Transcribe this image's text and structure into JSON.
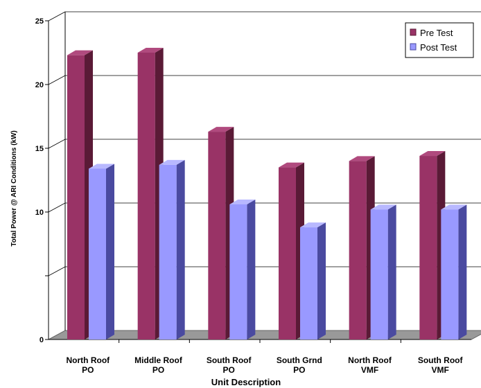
{
  "chart_data": {
    "type": "bar",
    "xlabel": "Unit Description",
    "ylabel": "Total  Power  @  ARI  Conditions   (kW)",
    "ylim": [
      0,
      25
    ],
    "yticks": [
      "0",
      "",
      "10",
      "15",
      "20",
      "25"
    ],
    "grid": true,
    "legend_position": "top-right",
    "categories": [
      [
        "North Roof",
        "PO"
      ],
      [
        "Middle Roof",
        "PO"
      ],
      [
        "South Roof",
        "PO"
      ],
      [
        "South Grnd",
        "PO"
      ],
      [
        "North Roof",
        "VMF"
      ],
      [
        "South Roof",
        "VMF"
      ]
    ],
    "series": [
      {
        "name": "Pre Test",
        "values": [
          22.3,
          22.5,
          16.3,
          13.5,
          14.0,
          14.4
        ],
        "color": "#993366",
        "side_color": "#5a1a36",
        "top_color": "#b04a7e"
      },
      {
        "name": "Post Test",
        "values": [
          13.4,
          13.7,
          10.6,
          8.8,
          10.2,
          10.2
        ],
        "color": "#9999ff",
        "side_color": "#4a4aa0",
        "top_color": "#b8b8ff"
      }
    ]
  },
  "colors": {
    "floor": "#999999",
    "floor_edge": "#666666",
    "axis": "#000000",
    "grid": "#000000"
  }
}
